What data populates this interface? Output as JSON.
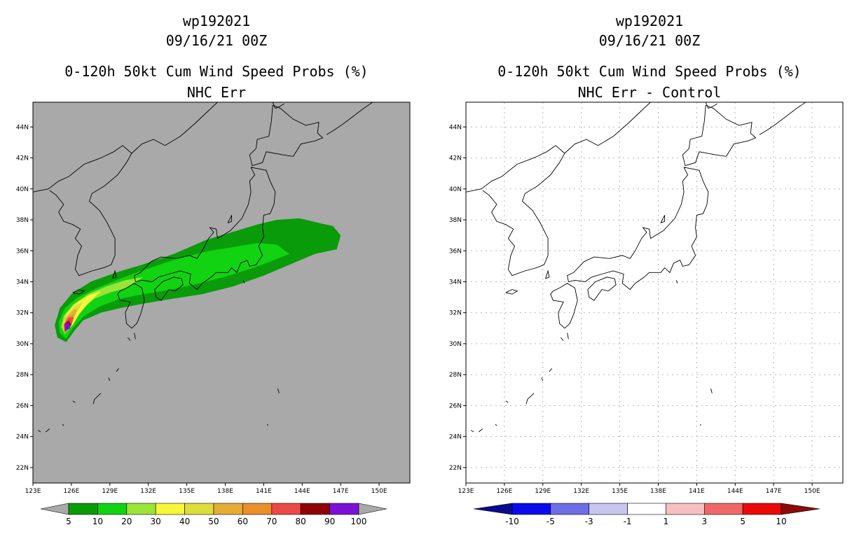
{
  "left": {
    "title": [
      "wp192021",
      "09/16/21 00Z",
      "0-120h 50kt Cum Wind Speed Probs (%)",
      "NHC Err"
    ],
    "background": "#a9a9a9",
    "colorbar": {
      "colors": [
        "#a9a9a9",
        "#0a9b0a",
        "#11d311",
        "#9be336",
        "#f7f73a",
        "#dcdc3a",
        "#e5ad36",
        "#ea8f2b",
        "#eb4848",
        "#8f0303",
        "#7b10d6",
        "#a9a9a9"
      ],
      "labels": [
        "5",
        "10",
        "20",
        "30",
        "40",
        "50",
        "60",
        "70",
        "80",
        "90",
        "100"
      ]
    }
  },
  "right": {
    "title": [
      "wp192021",
      "09/16/21 00Z",
      "0-120h 50kt Cum Wind Speed Probs (%)",
      "NHC Err - Control"
    ],
    "background": "#ffffff",
    "colorbar": {
      "colors": [
        "#0a0a8c",
        "#0a0aeb",
        "#6d6de6",
        "#c6c6f0",
        "#ffffff",
        "#f7c0c0",
        "#ef6868",
        "#eb0a0a",
        "#8c0a0a"
      ],
      "labels": [
        "-10",
        "-5",
        "-3",
        "-1",
        "1",
        "3",
        "5",
        "10"
      ]
    }
  },
  "axes": {
    "lat_labels": [
      "44N",
      "42N",
      "40N",
      "38N",
      "36N",
      "34N",
      "32N",
      "30N",
      "28N",
      "26N",
      "24N",
      "22N"
    ],
    "lon_labels": [
      "123E",
      "126E",
      "129E",
      "132E",
      "135E",
      "138E",
      "141E",
      "144E",
      "147E",
      "150E"
    ]
  },
  "map_data": {
    "storm": "wp192021",
    "probability_swath_levels": [
      5,
      10,
      20,
      30,
      40,
      50,
      60,
      70,
      80,
      90,
      100
    ],
    "max_probability_center": {
      "lat": 30.9,
      "lon": 125.9
    }
  }
}
